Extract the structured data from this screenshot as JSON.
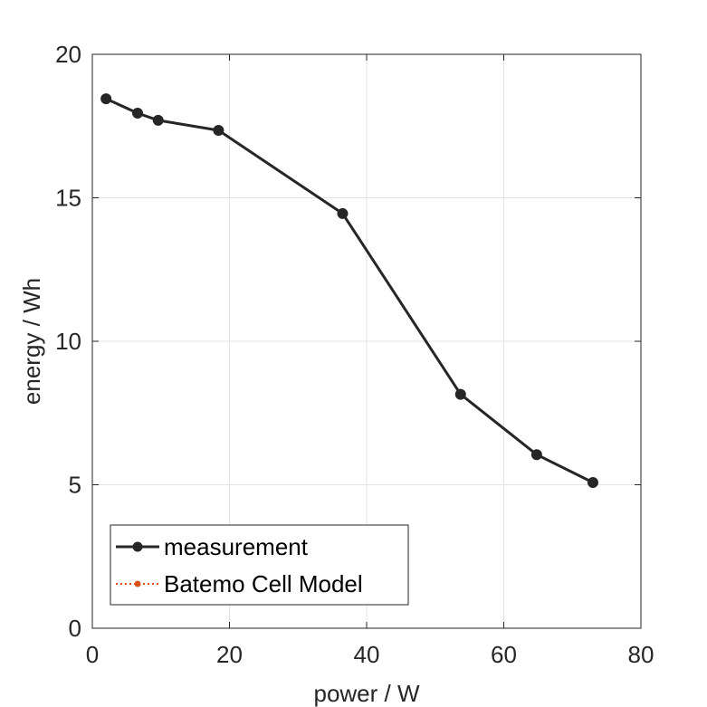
{
  "chart_data": {
    "type": "line",
    "title": "",
    "xlabel": "power / W",
    "ylabel": "energy / Wh",
    "xlim": [
      0,
      80
    ],
    "ylim": [
      0,
      20
    ],
    "xticks": [
      "0",
      "20",
      "40",
      "60",
      "80"
    ],
    "yticks": [
      "0",
      "5",
      "10",
      "15",
      "20"
    ],
    "grid": true,
    "legend_position": "bottom-left",
    "series": [
      {
        "name": "measurement",
        "color": "#262626",
        "line_style": "solid",
        "marker": "filled-circle",
        "x": [
          2.0,
          6.6,
          9.6,
          18.4,
          36.5,
          53.7,
          64.8,
          73.0
        ],
        "y": [
          18.45,
          17.95,
          17.7,
          17.35,
          14.45,
          8.15,
          6.05,
          5.08
        ]
      },
      {
        "name": "Batemo Cell Model",
        "color": "#D95319",
        "line_style": "dotted",
        "marker": "filled-circle",
        "x": [],
        "y": []
      }
    ]
  }
}
